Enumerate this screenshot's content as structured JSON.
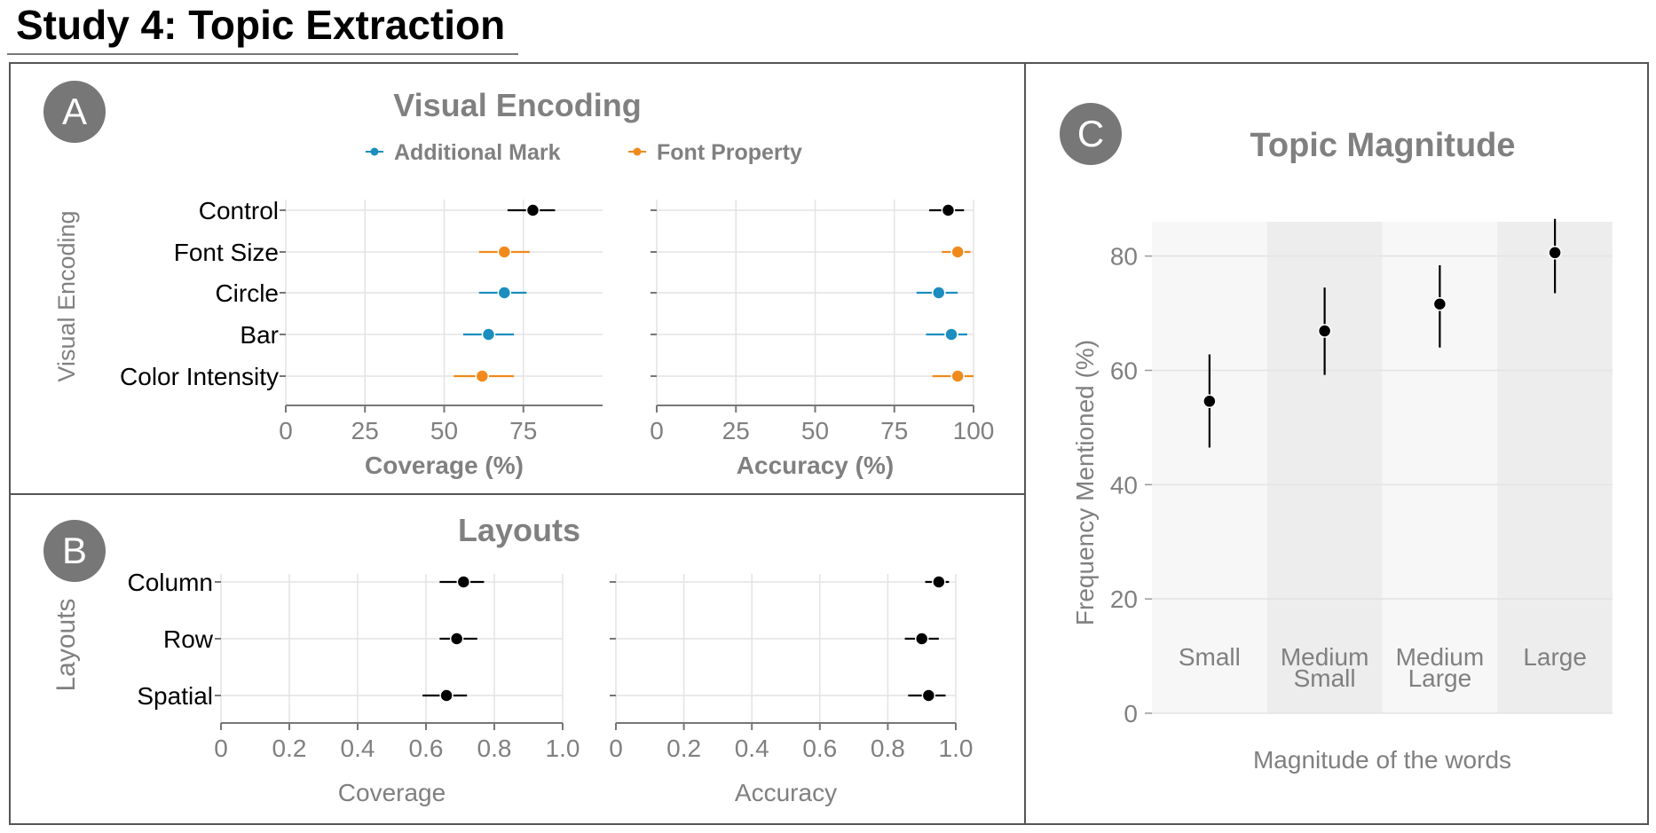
{
  "page": {
    "title": "Study 4: Topic Extraction",
    "badges": [
      "A",
      "B",
      "C"
    ]
  },
  "colors": {
    "additional_mark": "#1b8dbf",
    "font_property": "#f08a1c",
    "control": "#000000",
    "axis_text": "#808080",
    "grid": "#e3e3e3",
    "band_light": "#f7f7f7",
    "band_dark": "#ededed"
  },
  "chart_data": [
    {
      "id": "visual-encoding",
      "type": "scatter",
      "title": "Visual Encoding",
      "ylabel": "Visual Encoding",
      "legend": [
        {
          "name": "Additional Mark",
          "color_key": "additional_mark"
        },
        {
          "name": "Font Property",
          "color_key": "font_property"
        }
      ],
      "legend_position": "top",
      "categories": [
        "Control",
        "Font Size",
        "Circle",
        "Bar",
        "Color Intensity"
      ],
      "category_group": [
        "control",
        "font_property",
        "additional_mark",
        "additional_mark",
        "font_property"
      ],
      "grid": true,
      "facets": [
        {
          "xlabel": "Coverage (%)",
          "xlim": [
            0,
            100
          ],
          "xticks": [
            0,
            25,
            50,
            75
          ],
          "points": [
            {
              "mean": 78,
              "low": 70,
              "high": 85
            },
            {
              "mean": 69,
              "low": 61,
              "high": 77
            },
            {
              "mean": 69,
              "low": 61,
              "high": 76
            },
            {
              "mean": 64,
              "low": 56,
              "high": 72
            },
            {
              "mean": 62,
              "low": 53,
              "high": 72
            }
          ]
        },
        {
          "xlabel": "Accuracy (%)",
          "xlim": [
            0,
            100
          ],
          "xticks": [
            0,
            25,
            50,
            75,
            100
          ],
          "points": [
            {
              "mean": 92,
              "low": 86,
              "high": 97
            },
            {
              "mean": 95,
              "low": 90,
              "high": 99
            },
            {
              "mean": 89,
              "low": 82,
              "high": 95
            },
            {
              "mean": 93,
              "low": 85,
              "high": 98
            },
            {
              "mean": 95,
              "low": 87,
              "high": 100
            }
          ]
        }
      ]
    },
    {
      "id": "layouts",
      "type": "scatter",
      "title": "Layouts",
      "ylabel": "Layouts",
      "categories": [
        "Column",
        "Row",
        "Spatial"
      ],
      "grid": true,
      "facets": [
        {
          "xlabel": "Coverage",
          "xlim": [
            0,
            1.0
          ],
          "xticks": [
            "0",
            "0.2",
            "0.4",
            "0.6",
            "0.8",
            "1.0"
          ],
          "points": [
            {
              "mean": 0.71,
              "low": 0.64,
              "high": 0.77
            },
            {
              "mean": 0.69,
              "low": 0.64,
              "high": 0.75
            },
            {
              "mean": 0.66,
              "low": 0.59,
              "high": 0.72
            }
          ]
        },
        {
          "xlabel": "Accuracy",
          "xlim": [
            0,
            1.0
          ],
          "xticks": [
            "0",
            "0.2",
            "0.4",
            "0.6",
            "0.8",
            "1.0"
          ],
          "points": [
            {
              "mean": 0.95,
              "low": 0.91,
              "high": 0.98
            },
            {
              "mean": 0.9,
              "low": 0.85,
              "high": 0.95
            },
            {
              "mean": 0.92,
              "low": 0.86,
              "high": 0.97
            }
          ]
        }
      ]
    },
    {
      "id": "topic-magnitude",
      "type": "scatter",
      "title": "Topic Magnitude",
      "xlabel": "Magnitude of the words",
      "ylabel": "Frequency Mentioned (%)",
      "categories": [
        [
          "Small"
        ],
        [
          "Medium",
          "Small"
        ],
        [
          "Medium",
          "Large"
        ],
        [
          "Large"
        ]
      ],
      "ylim": [
        0,
        86
      ],
      "yticks": [
        0,
        20,
        40,
        60,
        80
      ],
      "grid": true,
      "points": [
        {
          "mean": 54.6,
          "low": 46.5,
          "high": 62.8
        },
        {
          "mean": 66.9,
          "low": 59.2,
          "high": 74.5
        },
        {
          "mean": 71.6,
          "low": 64.0,
          "high": 78.4
        },
        {
          "mean": 80.6,
          "low": 73.5,
          "high": 86.5
        }
      ]
    }
  ]
}
